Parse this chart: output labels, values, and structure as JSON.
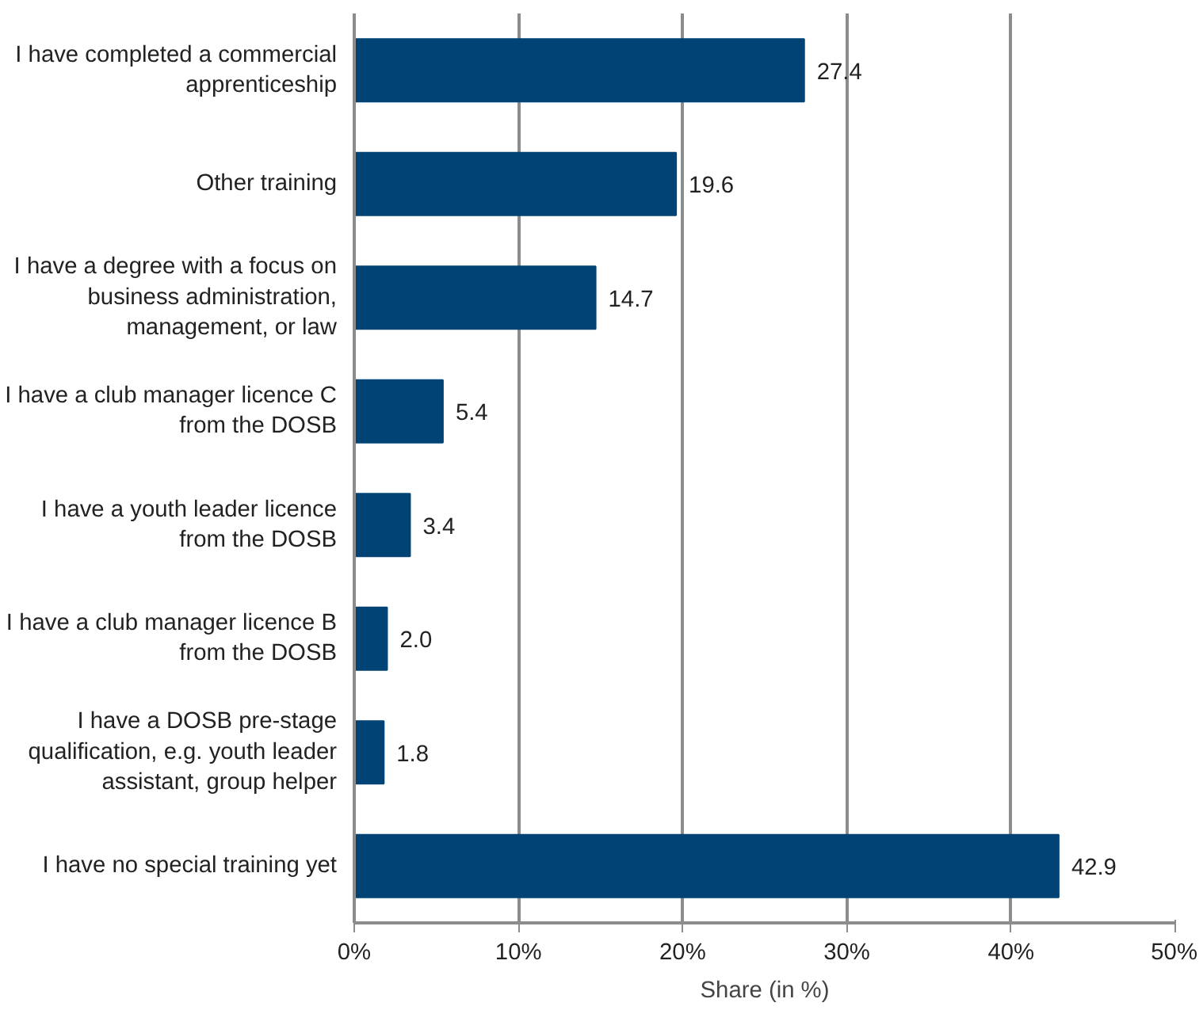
{
  "chart_data": {
    "type": "bar",
    "orientation": "horizontal",
    "xlabel": "Share (in %)",
    "categories": [
      "I have completed a commercial apprenticeship",
      "Other training",
      "I have a degree with a focus on business administration, management, or law",
      "I have a club manager licence C from the DOSB",
      "I have a youth leader licence from the DOSB",
      "I have a club manager licence B from the DOSB",
      "I have a DOSB pre-stage qualification, e.g. youth leader assistant, group helper",
      "I have no special training yet"
    ],
    "values": [
      27.4,
      19.6,
      14.7,
      5.4,
      3.4,
      2.0,
      1.8,
      42.9
    ],
    "value_labels": [
      "27.4",
      "19.6",
      "14.7",
      "5.4",
      "3.4",
      "2.0",
      "1.8",
      "42.9"
    ],
    "color": "#004374",
    "grid": "x",
    "xlim": [
      0,
      50
    ],
    "xticks": [
      {
        "value": 0,
        "label": "0%"
      },
      {
        "value": 10,
        "label": "10%"
      },
      {
        "value": 20,
        "label": "20%"
      },
      {
        "value": 30,
        "label": "30%"
      },
      {
        "value": 40,
        "label": "40%"
      },
      {
        "value": 50,
        "label": "50%"
      }
    ]
  }
}
